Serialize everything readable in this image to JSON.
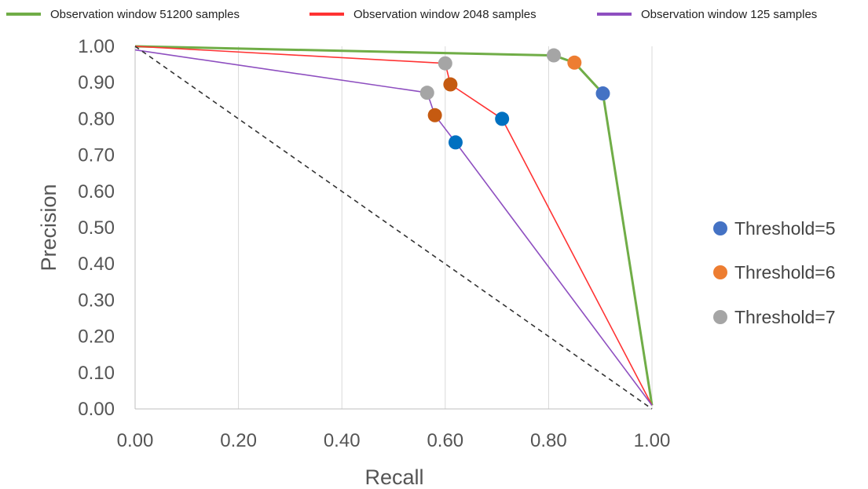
{
  "chart_data": {
    "type": "line",
    "xlabel": "Recall",
    "ylabel": "Precision",
    "xlim": [
      0,
      1
    ],
    "ylim": [
      0,
      1
    ],
    "x_ticks": [
      "0.00",
      "0.20",
      "0.40",
      "0.60",
      "0.80",
      "1.00"
    ],
    "y_ticks": [
      "0.00",
      "0.10",
      "0.20",
      "0.30",
      "0.40",
      "0.50",
      "0.60",
      "0.70",
      "0.80",
      "0.90",
      "1.00"
    ],
    "grid": "vertical",
    "series": [
      {
        "name": "Observation window 51200 samples",
        "color": "#70ad47",
        "points": [
          [
            0.0,
            1.0
          ],
          [
            0.81,
            0.975
          ],
          [
            0.85,
            0.955
          ],
          [
            0.905,
            0.87
          ],
          [
            1.0,
            0.01
          ]
        ]
      },
      {
        "name": "Observation window 2048 samples",
        "color": "#ff3333",
        "points": [
          [
            0.0,
            1.0
          ],
          [
            0.6,
            0.953
          ],
          [
            0.61,
            0.895
          ],
          [
            0.71,
            0.8
          ],
          [
            1.0,
            0.01
          ]
        ]
      },
      {
        "name": "Observation window 125 samples",
        "color": "#8e4fc0",
        "points": [
          [
            0.0,
            0.99
          ],
          [
            0.565,
            0.872
          ],
          [
            0.58,
            0.81
          ],
          [
            0.62,
            0.735
          ],
          [
            1.0,
            0.01
          ]
        ]
      },
      {
        "name": "",
        "color": "#333333",
        "style": "dashed",
        "points": [
          [
            0.0,
            1.0
          ],
          [
            1.0,
            0.0
          ]
        ]
      }
    ],
    "markers": [
      {
        "threshold": 5,
        "color": "#4472c4",
        "x": 0.905,
        "y": 0.87
      },
      {
        "threshold": 6,
        "color": "#ed7d31",
        "x": 0.85,
        "y": 0.955
      },
      {
        "threshold": 7,
        "color": "#a5a5a5",
        "x": 0.81,
        "y": 0.975
      },
      {
        "threshold": 5,
        "color": "#0070c0",
        "x": 0.71,
        "y": 0.8
      },
      {
        "threshold": 6,
        "color": "#c55a11",
        "x": 0.61,
        "y": 0.895
      },
      {
        "threshold": 7,
        "color": "#a5a5a5",
        "x": 0.6,
        "y": 0.953
      },
      {
        "threshold": 5,
        "color": "#0070c0",
        "x": 0.62,
        "y": 0.735
      },
      {
        "threshold": 6,
        "color": "#c55a11",
        "x": 0.58,
        "y": 0.81
      },
      {
        "threshold": 7,
        "color": "#a5a5a5",
        "x": 0.565,
        "y": 0.872
      }
    ],
    "marker_legend": [
      {
        "label": "Threshold=5",
        "color": "#4472c4"
      },
      {
        "label": "Threshold=6",
        "color": "#ed7d31"
      },
      {
        "label": "Threshold=7",
        "color": "#a5a5a5"
      }
    ]
  }
}
